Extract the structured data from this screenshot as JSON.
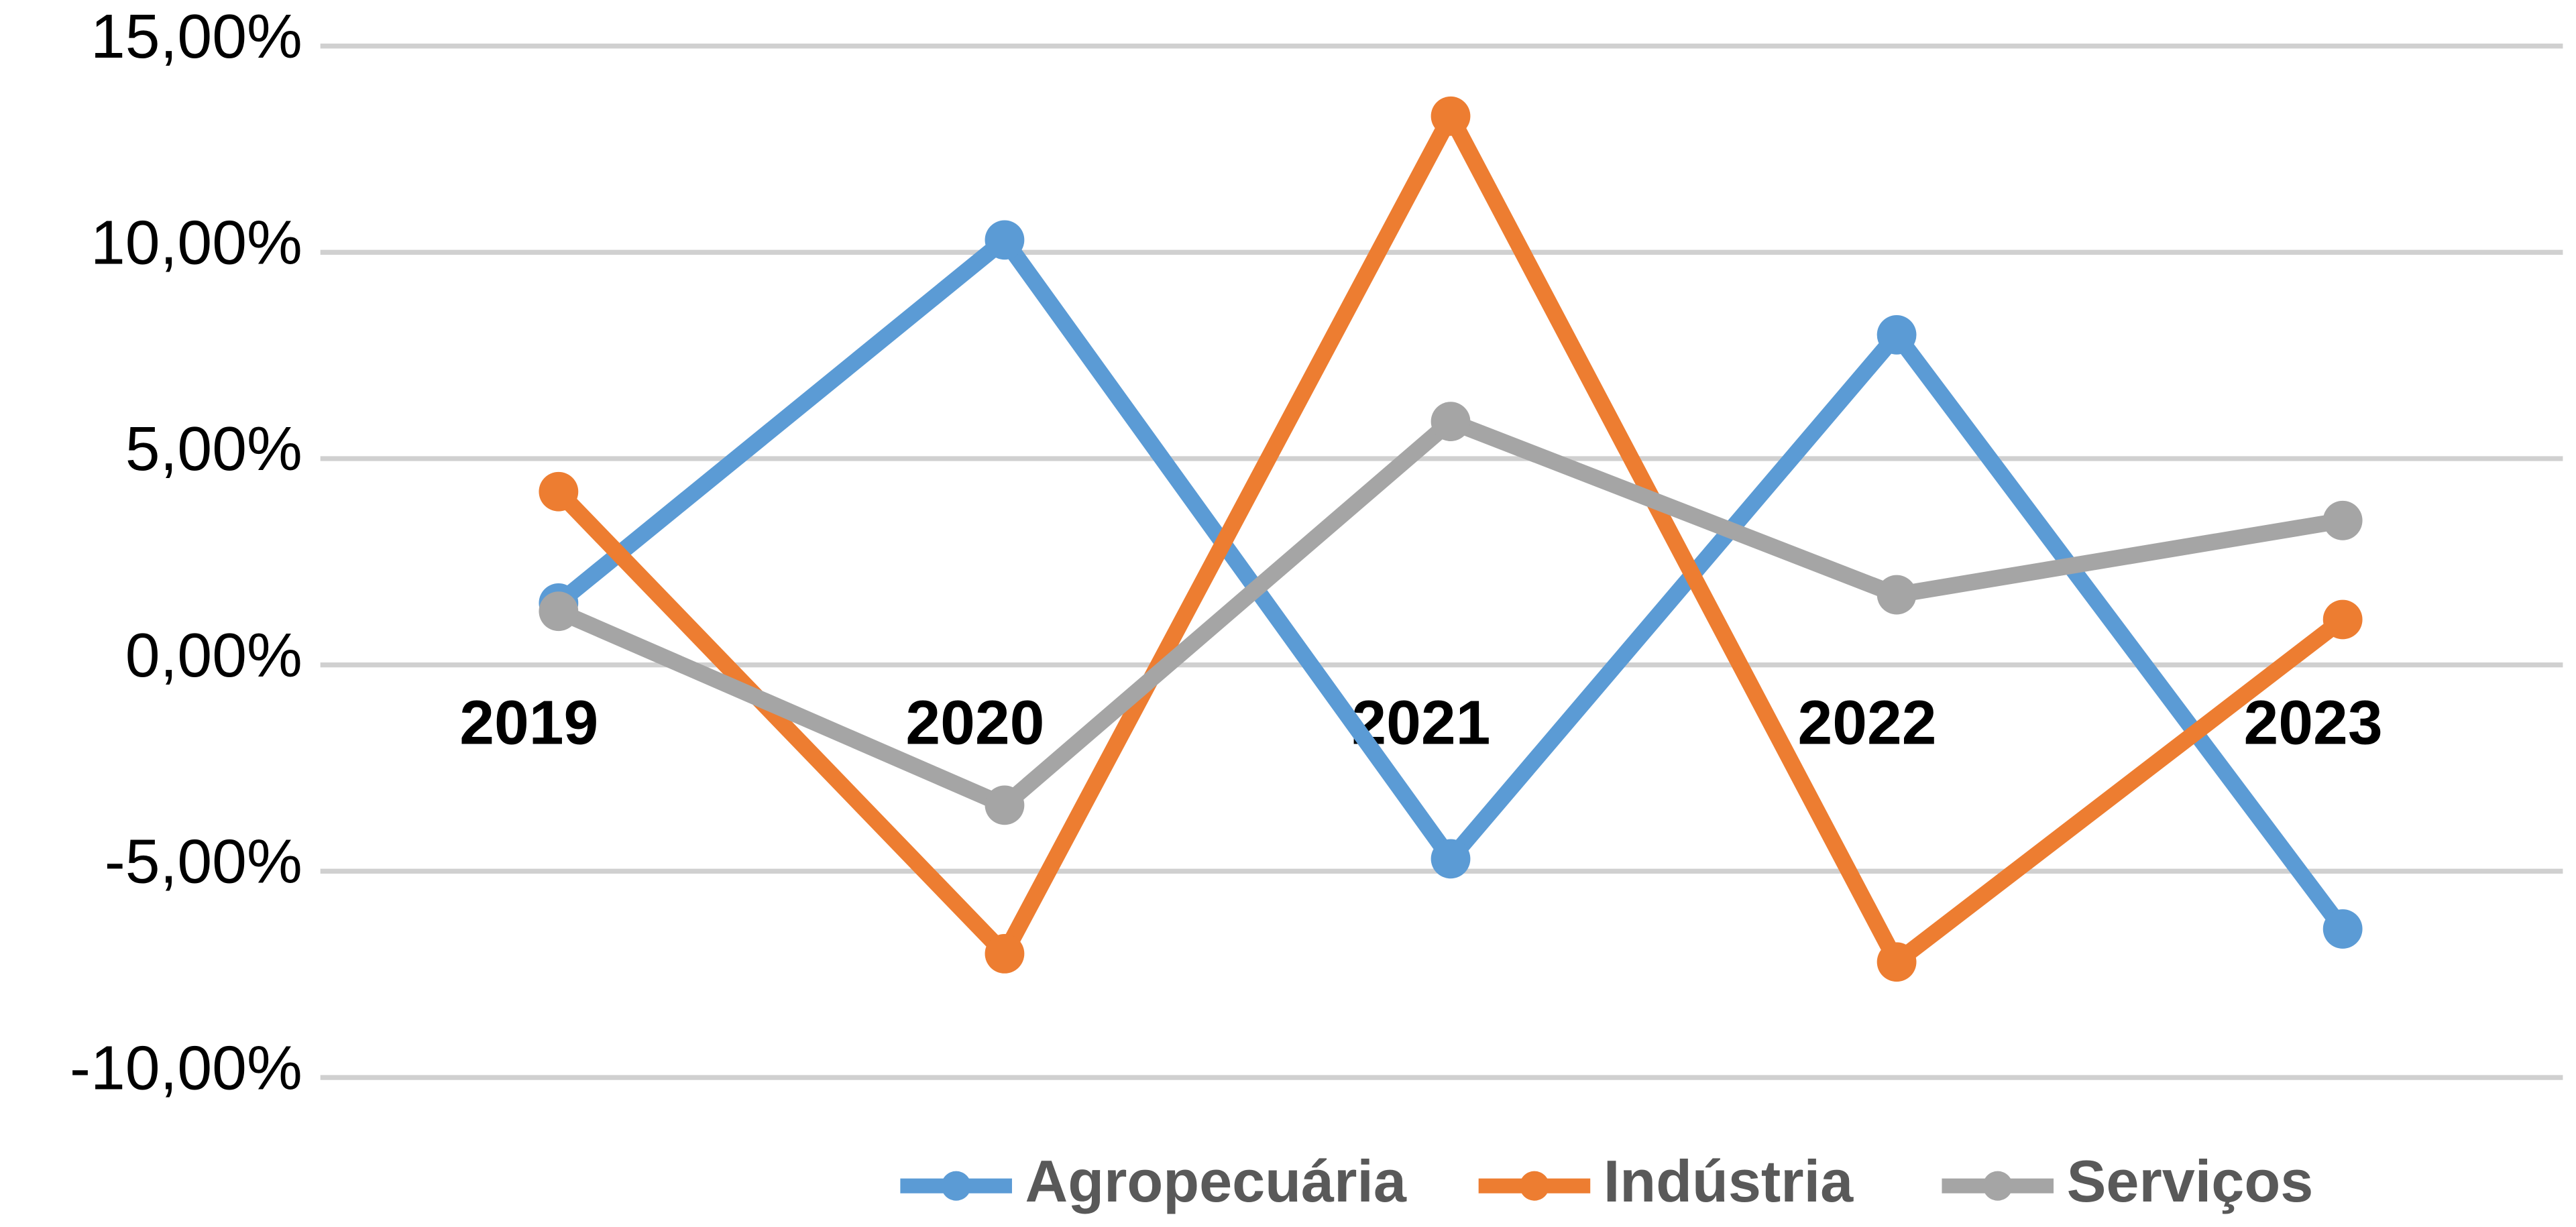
{
  "chart_data": {
    "type": "line",
    "categories": [
      "2019",
      "2020",
      "2021",
      "2022",
      "2023"
    ],
    "series": [
      {
        "name": "Agropecuária",
        "color": "#5b9bd5",
        "values": [
          1.5,
          10.3,
          -4.7,
          8.0,
          -6.4
        ]
      },
      {
        "name": "Indústria",
        "color": "#ed7d31",
        "values": [
          4.2,
          -7.0,
          13.3,
          -7.2,
          1.1
        ]
      },
      {
        "name": "Serviços",
        "color": "#a5a5a5",
        "values": [
          1.3,
          -3.4,
          5.9,
          1.7,
          3.5
        ]
      }
    ],
    "ylim": [
      -10,
      15
    ],
    "yticks": [
      {
        "value": -10,
        "label": "-10,00%"
      },
      {
        "value": -5,
        "label": "-5,00%"
      },
      {
        "value": 0,
        "label": "0,00%"
      },
      {
        "value": 5,
        "label": "5,00%"
      },
      {
        "value": 10,
        "label": "10,00%"
      },
      {
        "value": 15,
        "label": "15,00%"
      }
    ],
    "grid": true,
    "legend": "bottom"
  }
}
